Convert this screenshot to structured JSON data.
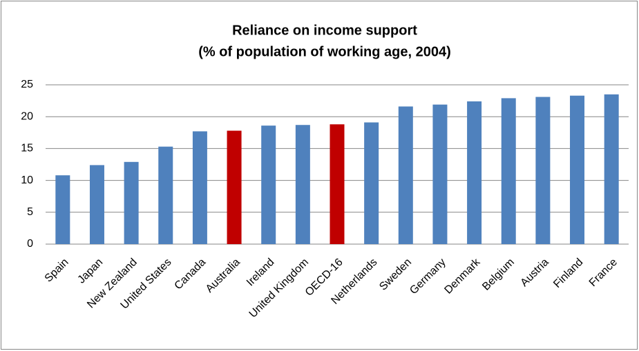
{
  "chart_data": {
    "type": "bar",
    "title": [
      "Reliance on income support",
      "(% of population of working age, 2004)"
    ],
    "categories": [
      "Spain",
      "Japan",
      "New Zealand",
      "United States",
      "Canada",
      "Australia",
      "Ireland",
      "United Kingdom",
      "OECD-16",
      "Netherlands",
      "Sweden",
      "Germany",
      "Denmark",
      "Belgium",
      "Austria",
      "Finland",
      "France"
    ],
    "values": [
      10.8,
      12.4,
      12.9,
      15.3,
      17.7,
      17.8,
      18.6,
      18.7,
      18.8,
      19.1,
      21.6,
      21.9,
      22.4,
      22.9,
      23.1,
      23.3,
      23.5
    ],
    "colors": [
      "#4f81bd",
      "#4f81bd",
      "#4f81bd",
      "#4f81bd",
      "#4f81bd",
      "#c00000",
      "#4f81bd",
      "#4f81bd",
      "#c00000",
      "#4f81bd",
      "#4f81bd",
      "#4f81bd",
      "#4f81bd",
      "#4f81bd",
      "#4f81bd",
      "#4f81bd",
      "#4f81bd"
    ],
    "ylim": [
      0,
      25
    ],
    "yticks": [
      0,
      5,
      10,
      15,
      20,
      25
    ],
    "grid": true
  }
}
